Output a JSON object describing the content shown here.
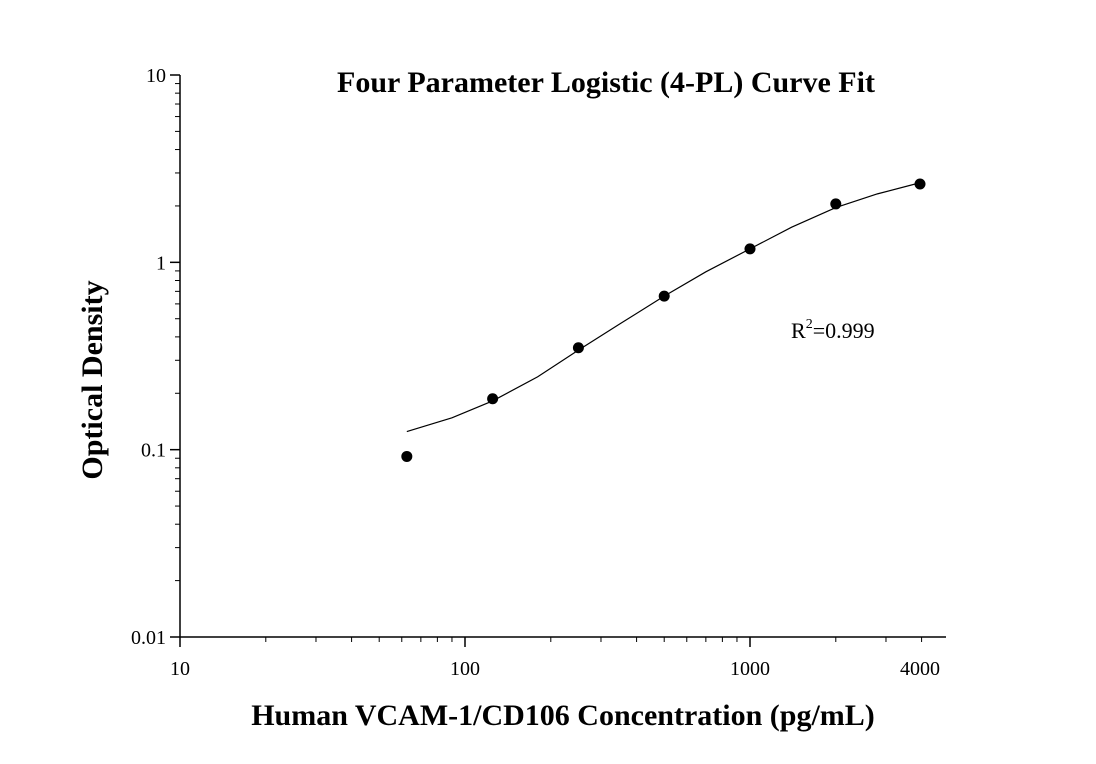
{
  "chart_data": {
    "type": "scatter",
    "title": "Four Parameter Logistic (4-PL) Curve Fit",
    "xlabel": "Human VCAM-1/CD106 Concentration (pg/mL)",
    "ylabel": "Optical Density",
    "x_scale": "log",
    "y_scale": "log",
    "xlim": [
      10,
      4000
    ],
    "ylim": [
      0.01,
      10
    ],
    "x_tick_labels": [
      {
        "value": 10,
        "label": "10"
      },
      {
        "value": 100,
        "label": "100"
      },
      {
        "value": 1000,
        "label": "1000"
      },
      {
        "value": 4000,
        "label": "4000"
      }
    ],
    "y_tick_labels": [
      {
        "value": 10,
        "label": "10"
      },
      {
        "value": 1,
        "label": "1"
      },
      {
        "value": 0.1,
        "label": "0.1"
      },
      {
        "value": 0.01,
        "label": "0.01"
      }
    ],
    "series": [
      {
        "type": "scatter",
        "x": [
          62.5,
          125,
          250,
          500,
          1000,
          2000,
          4000
        ],
        "y": [
          0.092,
          0.187,
          0.35,
          0.66,
          1.18,
          2.05,
          2.62
        ],
        "color": "#000000"
      },
      {
        "type": "line",
        "x": [
          62.5,
          90,
          125,
          180,
          250,
          350,
          500,
          700,
          1000,
          1400,
          2000,
          2800,
          4000
        ],
        "y": [
          0.125,
          0.148,
          0.182,
          0.245,
          0.34,
          0.47,
          0.66,
          0.89,
          1.18,
          1.54,
          1.96,
          2.32,
          2.66
        ],
        "color": "#000000"
      }
    ],
    "annotation": {
      "text": "R",
      "sup": "2",
      "tail": "=0.999"
    },
    "grid": false,
    "legend": "none"
  }
}
